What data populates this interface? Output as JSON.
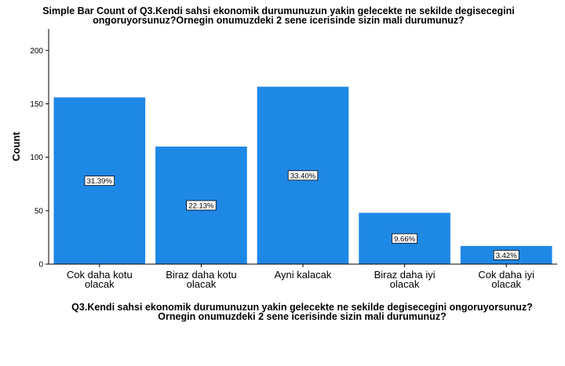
{
  "chart_data": {
    "type": "bar",
    "title_lines": [
      "Simple Bar Count of Q3.Kendi sahsi ekonomik durumunuzun yakin gelecekte ne sekilde degisecegini",
      "ongoruyorsunuz?Ornegin onumuzdeki 2 sene icerisinde sizin mali durumunuz?"
    ],
    "xlabel_lines": [
      "Q3.Kendi sahsi ekonomik durumunuzun yakin gelecekte ne sekilde degisecegini ongoruyorsunuz?",
      "Ornegin onumuzdeki 2 sene icerisinde sizin mali durumunuz?"
    ],
    "ylabel": "Count",
    "ylim": [
      0,
      220
    ],
    "yticks": [
      0,
      50,
      100,
      150,
      200
    ],
    "grid": false,
    "categories": [
      [
        "Cok daha kotu",
        "olacak"
      ],
      [
        "Biraz daha kotu",
        "olacak"
      ],
      [
        "Ayni kalacak"
      ],
      [
        "Biraz daha iyi",
        "olacak"
      ],
      [
        "Cok daha iyi",
        "olacak"
      ]
    ],
    "values": [
      156,
      110,
      166,
      48,
      17
    ],
    "data_labels": [
      "31.39%",
      "22.13%",
      "33.40%",
      "9.66%",
      "3.42%"
    ],
    "bar_color": "#1e88e5"
  }
}
